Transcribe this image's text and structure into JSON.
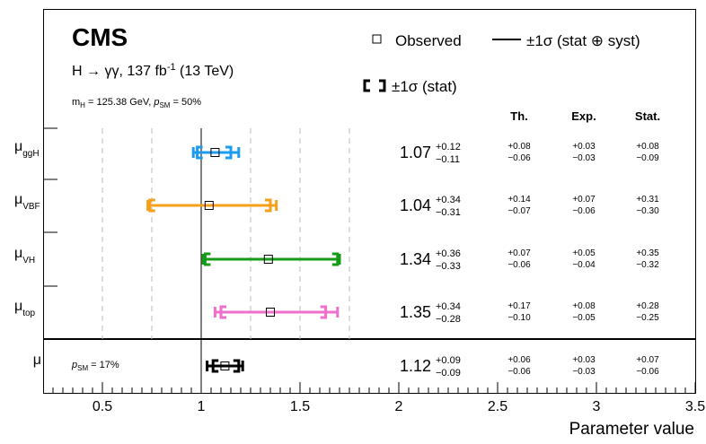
{
  "header": {
    "experiment": "CMS",
    "process": "H → γγ, 137 fb",
    "lumi_sup": "-1",
    "energy": " (13 TeV)",
    "mass_pre": "m",
    "mass_sub": "H",
    "mass_val": " = 125.38 GeV, ",
    "psm_p": "p",
    "psm_sub": "SM",
    "psm_val": " = 50%"
  },
  "legend": {
    "observed": "Observed",
    "total": "±1σ (stat ⊕ syst)",
    "stat": "±1σ (stat)"
  },
  "columns": {
    "th": "Th.",
    "exp": "Exp.",
    "stat": "Stat."
  },
  "combined_note": {
    "p": "p",
    "sub": "SM",
    "val": " = 17%"
  },
  "colors": {
    "ggH": "#1b9cf0",
    "VBF": "#f6a01a",
    "VH": "#159b17",
    "top": "#ef6fcd",
    "inclusive": "#000000"
  },
  "chart_data": {
    "type": "scatter",
    "xlabel": "Parameter value",
    "xlim": [
      0.2,
      3.5
    ],
    "xticks": [
      "0.5",
      "1",
      "1.5",
      "2",
      "2.5",
      "3",
      "3.5"
    ],
    "reference_line": 1,
    "dashed_gridlines": [
      0.5,
      0.75,
      1.25,
      1.5,
      1.75
    ],
    "series": [
      {
        "name": "μ",
        "sub": "ggH",
        "value": 1.07,
        "val": "1.07",
        "tot_up": "+0.12",
        "tot_dn": "−0.11",
        "stat_up": 0.08,
        "stat_dn": 0.09,
        "th_up": "+0.08",
        "th_dn": "−0.06",
        "exp_up": "+0.03",
        "exp_dn": "−0.03",
        "st_up": "+0.08",
        "st_dn": "−0.09"
      },
      {
        "name": "μ",
        "sub": "VBF",
        "value": 1.04,
        "val": "1.04",
        "tot_up": "+0.34",
        "tot_dn": "−0.31",
        "stat_up": 0.31,
        "stat_dn": 0.3,
        "th_up": "+0.14",
        "th_dn": "−0.07",
        "exp_up": "+0.07",
        "exp_dn": "−0.06",
        "st_up": "+0.31",
        "st_dn": "−0.30"
      },
      {
        "name": "μ",
        "sub": "VH",
        "value": 1.34,
        "val": "1.34",
        "tot_up": "+0.36",
        "tot_dn": "−0.33",
        "stat_up": 0.35,
        "stat_dn": 0.32,
        "th_up": "+0.07",
        "th_dn": "−0.06",
        "exp_up": "+0.05",
        "exp_dn": "−0.04",
        "st_up": "+0.35",
        "st_dn": "−0.32"
      },
      {
        "name": "μ",
        "sub": "top",
        "value": 1.35,
        "val": "1.35",
        "tot_up": "+0.34",
        "tot_dn": "−0.28",
        "stat_up": 0.28,
        "stat_dn": 0.25,
        "th_up": "+0.17",
        "th_dn": "−0.10",
        "exp_up": "+0.08",
        "exp_dn": "−0.05",
        "st_up": "+0.28",
        "st_dn": "−0.25"
      },
      {
        "name": "μ",
        "sub": "",
        "value": 1.12,
        "val": "1.12",
        "tot_up": "+0.09",
        "tot_dn": "−0.09",
        "stat_up": 0.07,
        "stat_dn": 0.06,
        "th_up": "+0.06",
        "th_dn": "−0.06",
        "exp_up": "+0.03",
        "exp_dn": "−0.03",
        "st_up": "+0.07",
        "st_dn": "−0.06"
      }
    ]
  }
}
